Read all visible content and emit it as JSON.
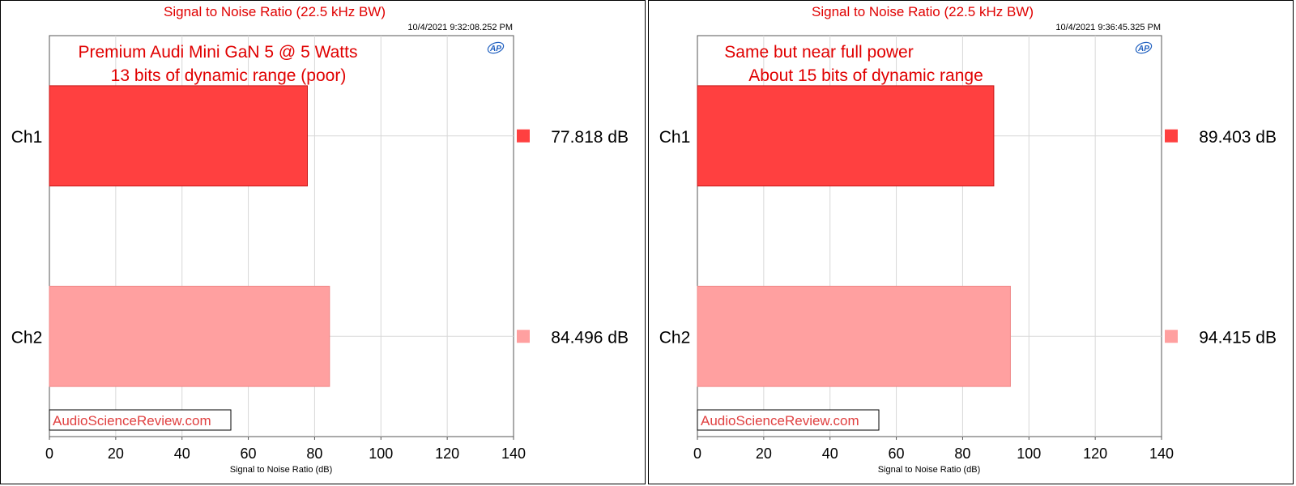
{
  "chart_data": [
    {
      "type": "bar",
      "title": "Signal to Noise Ratio (22.5 kHz BW)",
      "timestamp": "10/4/2021 9:32:08.252 PM",
      "annotation": [
        "Premium Audi Mini GaN 5 @ 5 Watts",
        "13 bits of dynamic range (poor)"
      ],
      "categories": [
        "Ch1",
        "Ch2"
      ],
      "values": [
        77.818,
        84.496
      ],
      "value_labels": [
        "77.818  dB",
        "84.496  dB"
      ],
      "colors": [
        "#ff4040",
        "#ffa0a0"
      ],
      "xlabel": "Signal to Noise Ratio (dB)",
      "xlim": [
        0,
        140
      ],
      "xticks": [
        0,
        20,
        40,
        60,
        80,
        100,
        120,
        140
      ],
      "watermark": "AudioScienceReview.com",
      "logo": "AP",
      "grid": true
    },
    {
      "type": "bar",
      "title": "Signal to Noise Ratio (22.5 kHz BW)",
      "timestamp": "10/4/2021 9:36:45.325 PM",
      "annotation": [
        "Same but near full power",
        "About 15 bits of dynamic range"
      ],
      "categories": [
        "Ch1",
        "Ch2"
      ],
      "values": [
        89.403,
        94.415
      ],
      "value_labels": [
        "89.403  dB",
        "94.415  dB"
      ],
      "colors": [
        "#ff4040",
        "#ffa0a0"
      ],
      "xlabel": "Signal to Noise Ratio (dB)",
      "xlim": [
        0,
        140
      ],
      "xticks": [
        0,
        20,
        40,
        60,
        80,
        100,
        120,
        140
      ],
      "watermark": "AudioScienceReview.com",
      "logo": "AP",
      "grid": true
    }
  ]
}
